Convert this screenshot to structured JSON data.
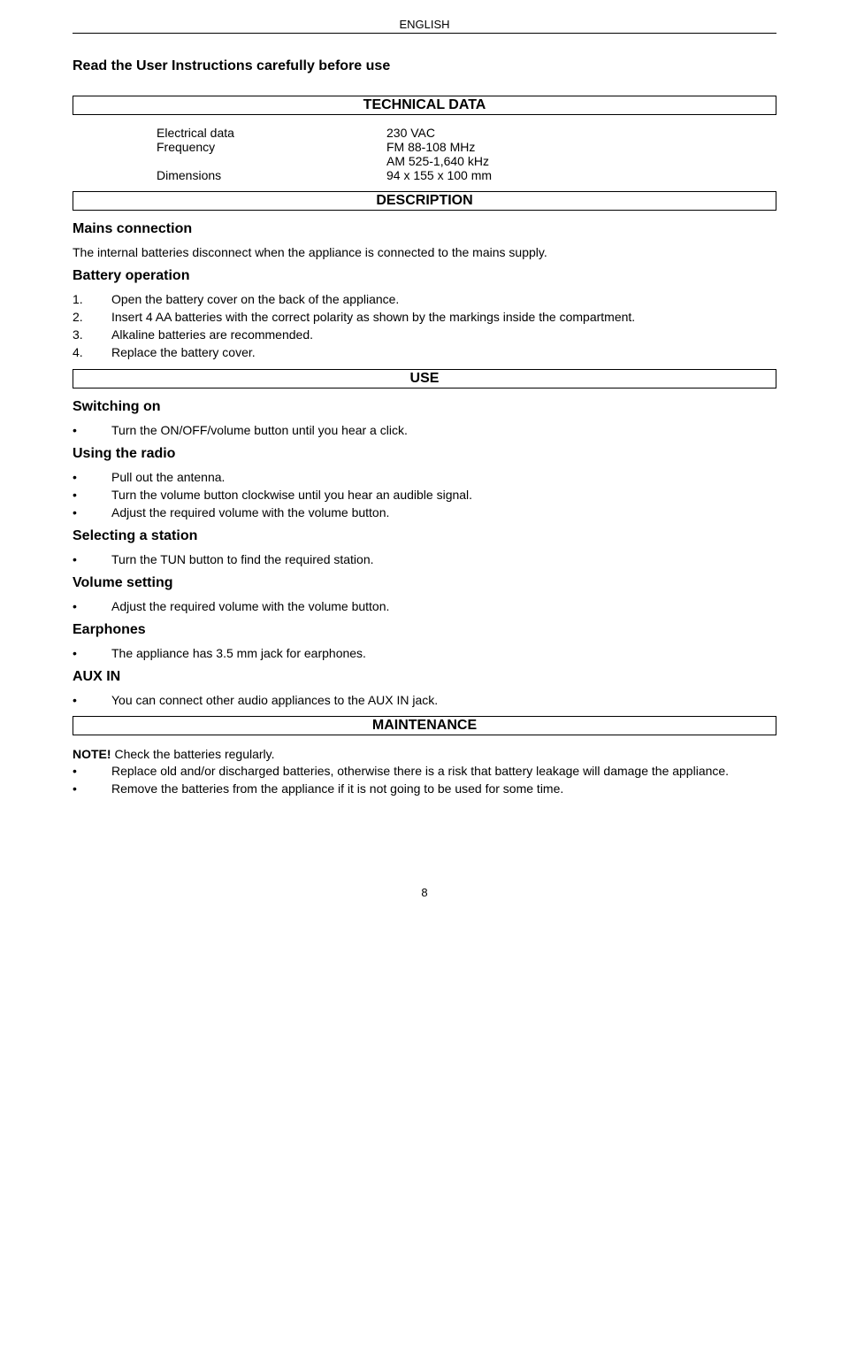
{
  "header_lang": "ENGLISH",
  "intro": "Read the User Instructions carefully before use",
  "sections": {
    "technical_data": "TECHNICAL DATA",
    "description": "DESCRIPTION",
    "use": "USE",
    "maintenance": "MAINTENANCE"
  },
  "specs": {
    "electrical_label": "Electrical data",
    "electrical_value": "230 VAC",
    "frequency_label": "Frequency",
    "frequency_value1": "FM 88-108 MHz",
    "frequency_value2": "AM 525-1,640 kHz",
    "dimensions_label": "Dimensions",
    "dimensions_value": "94 x 155 x 100 mm"
  },
  "mains": {
    "heading": "Mains connection",
    "text": "The internal batteries disconnect when the appliance is connected to the mains supply."
  },
  "battery": {
    "heading": "Battery operation",
    "steps": [
      "Open the battery cover on the back of the appliance.",
      "Insert 4 AA batteries with the correct polarity as shown by the markings inside the compartment.",
      "Alkaline batteries are recommended.",
      "Replace the battery cover."
    ]
  },
  "switching_on": {
    "heading": "Switching on",
    "items": [
      "Turn the ON/OFF/volume button until you hear a click."
    ]
  },
  "using_radio": {
    "heading": "Using the radio",
    "items": [
      "Pull out the antenna.",
      "Turn the volume button clockwise until you hear an audible signal.",
      "Adjust the required volume with the volume button."
    ]
  },
  "selecting_station": {
    "heading": "Selecting a station",
    "items": [
      "Turn the TUN button to find the required station."
    ]
  },
  "volume_setting": {
    "heading": "Volume setting",
    "items": [
      "Adjust the required volume with the volume button."
    ]
  },
  "earphones": {
    "heading": "Earphones",
    "items": [
      "The appliance has 3.5 mm jack for earphones."
    ]
  },
  "aux_in": {
    "heading": "AUX IN",
    "items": [
      "You can connect other audio appliances to the AUX IN jack."
    ]
  },
  "maintenance": {
    "note_bold": "NOTE!",
    "note_rest": " Check the batteries regularly.",
    "items": [
      "Replace old and/or discharged batteries, otherwise there is a risk that battery leakage will damage the appliance.",
      "Remove the batteries from the appliance if it is not going to be used for some time."
    ]
  },
  "page_number": "8"
}
